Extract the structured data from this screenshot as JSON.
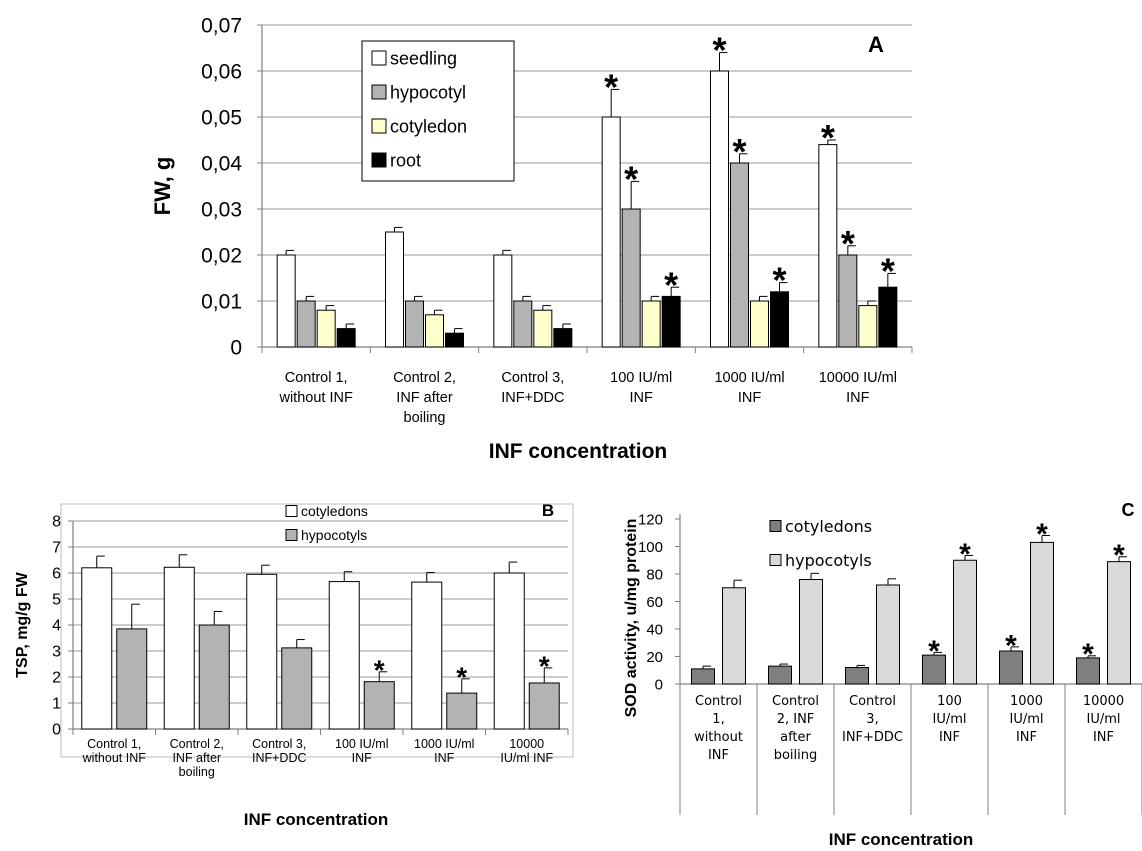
{
  "chart_data": [
    {
      "panel": "A",
      "type": "bar",
      "ylabel": "FW, g",
      "xlabel": "INF concentration",
      "ylim": [
        0,
        0.07
      ],
      "yticks": [
        "0",
        "0,01",
        "0,02",
        "0,03",
        "0,04",
        "0,05",
        "0,06",
        "0,07"
      ],
      "categories": [
        [
          "Control 1,",
          "without INF"
        ],
        [
          "Control 2,",
          "INF after",
          "boiling"
        ],
        [
          "Control 3,",
          "INF+DDC"
        ],
        [
          "100 IU/ml",
          "INF"
        ],
        [
          "1000 IU/ml",
          "INF"
        ],
        [
          "10000 IU/ml",
          "INF"
        ]
      ],
      "legend_position": "top-left",
      "grid": true,
      "series": [
        {
          "name": "seedling",
          "color": "#ffffff",
          "values": [
            0.02,
            0.025,
            0.02,
            0.05,
            0.06,
            0.044
          ],
          "errors": [
            0.001,
            0.001,
            0.001,
            0.006,
            0.004,
            0.001
          ],
          "stars": [
            false,
            false,
            false,
            true,
            true,
            true
          ]
        },
        {
          "name": "hypocotyl",
          "color": "#b3b3b3",
          "values": [
            0.01,
            0.01,
            0.01,
            0.03,
            0.04,
            0.02
          ],
          "errors": [
            0.001,
            0.001,
            0.001,
            0.006,
            0.002,
            0.002
          ],
          "stars": [
            false,
            false,
            false,
            true,
            true,
            true
          ]
        },
        {
          "name": "cotyledon",
          "color": "#ffffcc",
          "values": [
            0.008,
            0.007,
            0.008,
            0.01,
            0.01,
            0.009
          ],
          "errors": [
            0.001,
            0.001,
            0.001,
            0.001,
            0.001,
            0.001
          ],
          "stars": [
            false,
            false,
            false,
            false,
            false,
            false
          ]
        },
        {
          "name": "root",
          "color": "#000000",
          "values": [
            0.004,
            0.003,
            0.004,
            0.011,
            0.012,
            0.013
          ],
          "errors": [
            0.001,
            0.001,
            0.001,
            0.002,
            0.002,
            0.003
          ],
          "stars": [
            false,
            false,
            false,
            true,
            true,
            true
          ]
        }
      ]
    },
    {
      "panel": "B",
      "type": "bar",
      "ylabel": "TSP, mg/g FW",
      "xlabel": "INF concentration",
      "ylim": [
        0,
        8
      ],
      "yticks": [
        "0",
        "1",
        "2",
        "3",
        "4",
        "5",
        "6",
        "7",
        "8"
      ],
      "categories": [
        [
          "Control 1,",
          "without INF"
        ],
        [
          "Control 2,",
          "INF after",
          "boiling"
        ],
        [
          "Control 3,",
          "INF+DDC"
        ],
        [
          "100 IU/ml",
          "INF"
        ],
        [
          "1000 IU/ml",
          "INF"
        ],
        [
          "10000",
          "IU/ml INF"
        ]
      ],
      "legend_position": "top-center",
      "grid": true,
      "series": [
        {
          "name": "cotyledons",
          "color": "#ffffff",
          "values": [
            6.2,
            6.22,
            5.95,
            5.67,
            5.65,
            6.0
          ],
          "errors": [
            0.45,
            0.48,
            0.35,
            0.38,
            0.37,
            0.42
          ],
          "stars": [
            false,
            false,
            false,
            false,
            false,
            false
          ]
        },
        {
          "name": "hypocotyls",
          "color": "#b3b3b3",
          "values": [
            3.85,
            4.0,
            3.12,
            1.82,
            1.38,
            1.77
          ],
          "errors": [
            0.95,
            0.52,
            0.32,
            0.38,
            0.55,
            0.58
          ],
          "stars": [
            false,
            false,
            false,
            true,
            true,
            true
          ]
        }
      ]
    },
    {
      "panel": "C",
      "type": "bar",
      "ylabel": "SOD activity, u/mg protein",
      "xlabel": "INF concentration",
      "ylim": [
        0,
        120
      ],
      "yticks": [
        "0",
        "20",
        "40",
        "60",
        "80",
        "100",
        "120"
      ],
      "categories": [
        [
          "Control",
          "1,",
          "without",
          "INF"
        ],
        [
          "Control",
          "2, INF",
          "after",
          "boiling"
        ],
        [
          "Control",
          "3,",
          "INF+DDC"
        ],
        [
          "100",
          "IU/ml",
          "INF"
        ],
        [
          "1000",
          "IU/ml",
          "INF"
        ],
        [
          "10000",
          "IU/ml",
          "INF"
        ]
      ],
      "legend_position": "top-left",
      "grid": false,
      "series": [
        {
          "name": "cotyledons",
          "color": "#7f7f7f",
          "values": [
            11,
            13,
            12,
            21,
            24,
            19
          ],
          "errors": [
            2,
            1.5,
            1.5,
            2,
            3,
            1.5
          ],
          "stars": [
            false,
            false,
            false,
            true,
            true,
            true
          ]
        },
        {
          "name": "hypocotyls",
          "color": "#d9d9d9",
          "values": [
            70,
            76,
            72,
            90,
            103,
            89
          ],
          "errors": [
            5.5,
            4.5,
            4.5,
            3.5,
            5,
            3.5
          ],
          "stars": [
            false,
            false,
            false,
            true,
            true,
            true
          ]
        }
      ]
    }
  ]
}
